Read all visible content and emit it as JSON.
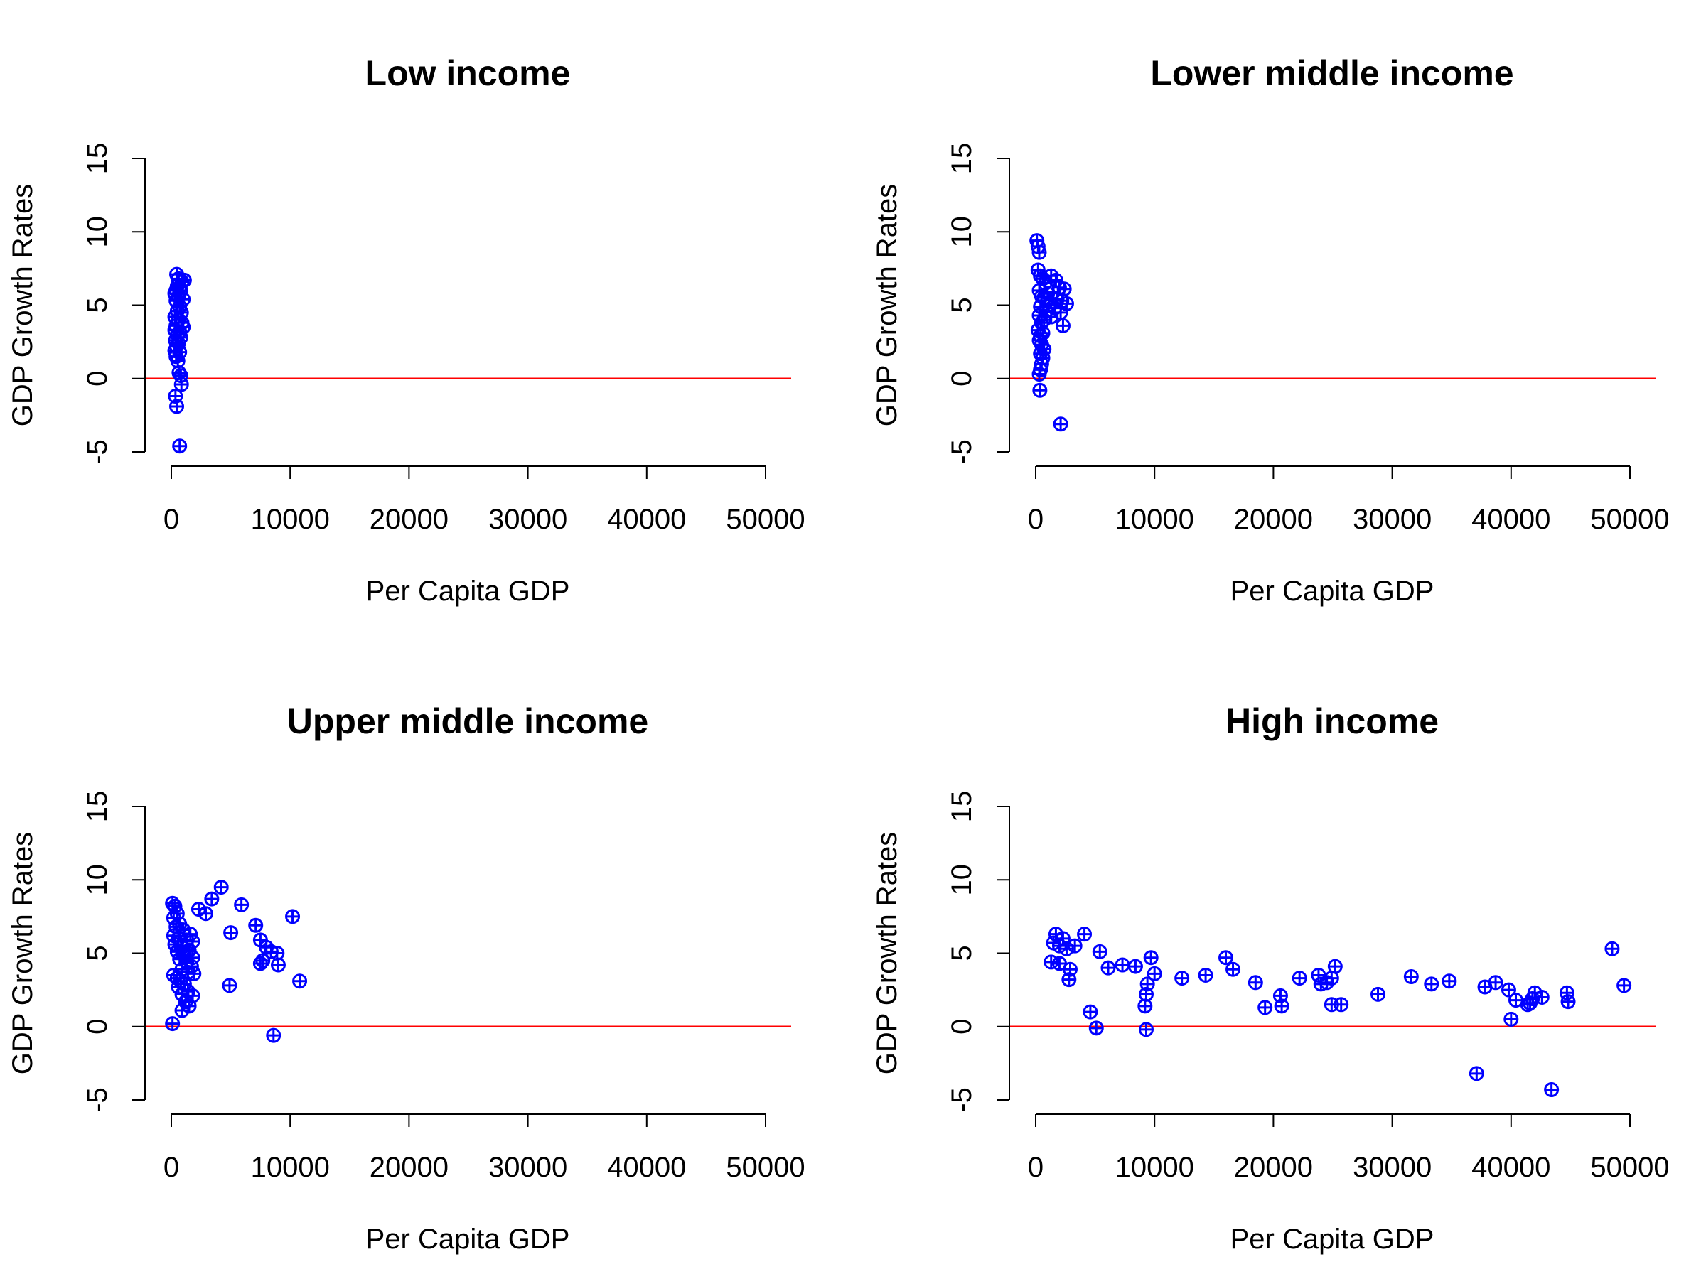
{
  "figure": {
    "colors": {
      "points": "#0000ff",
      "reference_line": "#ff0000",
      "axes": "#000000"
    },
    "marker": "circle-plus"
  },
  "chart_data": [
    {
      "type": "scatter",
      "title": "Low income",
      "xlabel": "Per Capita GDP",
      "ylabel": "GDP Growth Rates",
      "xlim": [
        0,
        50000
      ],
      "ylim": [
        -5,
        15
      ],
      "xticks": [
        0,
        10000,
        20000,
        30000,
        40000,
        50000
      ],
      "yticks": [
        -5,
        0,
        5,
        10,
        15
      ],
      "hline": 0,
      "grid": false,
      "points": [
        [
          450,
          7.1
        ],
        [
          600,
          6.8
        ],
        [
          900,
          6.6
        ],
        [
          1100,
          6.7
        ],
        [
          500,
          6.3
        ],
        [
          700,
          6.2
        ],
        [
          400,
          6.0
        ],
        [
          800,
          6.0
        ],
        [
          300,
          5.8
        ],
        [
          600,
          5.6
        ],
        [
          1000,
          5.4
        ],
        [
          400,
          5.3
        ],
        [
          700,
          4.9
        ],
        [
          500,
          4.6
        ],
        [
          850,
          4.5
        ],
        [
          300,
          4.2
        ],
        [
          600,
          4.0
        ],
        [
          900,
          3.8
        ],
        [
          400,
          3.6
        ],
        [
          1000,
          3.5
        ],
        [
          300,
          3.3
        ],
        [
          700,
          3.2
        ],
        [
          500,
          3.0
        ],
        [
          800,
          2.8
        ],
        [
          350,
          2.6
        ],
        [
          600,
          2.4
        ],
        [
          450,
          2.2
        ],
        [
          300,
          1.9
        ],
        [
          700,
          1.8
        ],
        [
          400,
          1.5
        ],
        [
          550,
          1.2
        ],
        [
          650,
          0.4
        ],
        [
          800,
          0.2
        ],
        [
          850,
          -0.4
        ],
        [
          350,
          -1.2
        ],
        [
          450,
          -1.9
        ],
        [
          700,
          -4.6
        ]
      ]
    },
    {
      "type": "scatter",
      "title": "Lower middle income",
      "xlabel": "Per Capita GDP",
      "ylabel": "GDP Growth Rates",
      "xlim": [
        0,
        50000
      ],
      "ylim": [
        -5,
        15
      ],
      "xticks": [
        0,
        10000,
        20000,
        30000,
        40000,
        50000
      ],
      "yticks": [
        -5,
        0,
        5,
        10,
        15
      ],
      "hline": 0,
      "grid": false,
      "points": [
        [
          100,
          9.4
        ],
        [
          200,
          9.0
        ],
        [
          300,
          8.6
        ],
        [
          200,
          7.4
        ],
        [
          400,
          7.0
        ],
        [
          600,
          6.8
        ],
        [
          1300,
          7.0
        ],
        [
          1700,
          6.7
        ],
        [
          800,
          6.5
        ],
        [
          2000,
          6.2
        ],
        [
          2400,
          6.1
        ],
        [
          300,
          6.0
        ],
        [
          1500,
          5.9
        ],
        [
          1000,
          5.8
        ],
        [
          500,
          5.6
        ],
        [
          700,
          5.5
        ],
        [
          1800,
          5.4
        ],
        [
          2200,
          5.3
        ],
        [
          2600,
          5.1
        ],
        [
          1100,
          5.0
        ],
        [
          400,
          4.9
        ],
        [
          1600,
          4.8
        ],
        [
          900,
          4.6
        ],
        [
          2100,
          4.5
        ],
        [
          300,
          4.3
        ],
        [
          1300,
          4.2
        ],
        [
          700,
          4.0
        ],
        [
          500,
          3.8
        ],
        [
          2300,
          3.6
        ],
        [
          200,
          3.3
        ],
        [
          600,
          3.1
        ],
        [
          400,
          2.9
        ],
        [
          300,
          2.6
        ],
        [
          500,
          2.3
        ],
        [
          700,
          2.0
        ],
        [
          400,
          1.7
        ],
        [
          600,
          1.4
        ],
        [
          500,
          1.0
        ],
        [
          400,
          0.6
        ],
        [
          300,
          0.3
        ],
        [
          350,
          -0.8
        ],
        [
          2100,
          -3.1
        ]
      ]
    },
    {
      "type": "scatter",
      "title": "Upper middle income",
      "xlabel": "Per Capita GDP",
      "ylabel": "GDP Growth Rates",
      "xlim": [
        0,
        50000
      ],
      "ylim": [
        -5,
        15
      ],
      "xticks": [
        0,
        10000,
        20000,
        30000,
        40000,
        50000
      ],
      "yticks": [
        -5,
        0,
        5,
        10,
        15
      ],
      "hline": 0,
      "grid": false,
      "points": [
        [
          100,
          8.4
        ],
        [
          300,
          8.2
        ],
        [
          500,
          7.7
        ],
        [
          200,
          7.4
        ],
        [
          700,
          7.0
        ],
        [
          400,
          6.8
        ],
        [
          1000,
          6.6
        ],
        [
          1600,
          6.3
        ],
        [
          200,
          6.2
        ],
        [
          600,
          6.0
        ],
        [
          1300,
          5.9
        ],
        [
          1800,
          5.8
        ],
        [
          300,
          5.6
        ],
        [
          900,
          5.4
        ],
        [
          1500,
          5.2
        ],
        [
          500,
          5.1
        ],
        [
          1100,
          4.9
        ],
        [
          1800,
          4.7
        ],
        [
          700,
          4.6
        ],
        [
          1300,
          4.4
        ],
        [
          1700,
          4.1
        ],
        [
          900,
          3.9
        ],
        [
          1400,
          3.7
        ],
        [
          1900,
          3.6
        ],
        [
          200,
          3.5
        ],
        [
          500,
          3.3
        ],
        [
          800,
          3.1
        ],
        [
          1100,
          2.9
        ],
        [
          600,
          2.7
        ],
        [
          1400,
          2.4
        ],
        [
          900,
          2.2
        ],
        [
          1800,
          2.1
        ],
        [
          1200,
          1.7
        ],
        [
          1500,
          1.4
        ],
        [
          900,
          1.1
        ],
        [
          100,
          0.2
        ],
        [
          2300,
          8.0
        ],
        [
          2900,
          7.7
        ],
        [
          3400,
          8.7
        ],
        [
          4200,
          9.5
        ],
        [
          5900,
          8.3
        ],
        [
          5000,
          6.4
        ],
        [
          4900,
          2.8
        ],
        [
          7100,
          6.9
        ],
        [
          7500,
          5.9
        ],
        [
          8000,
          5.4
        ],
        [
          8400,
          5.1
        ],
        [
          8900,
          5.0
        ],
        [
          7500,
          4.3
        ],
        [
          7700,
          4.5
        ],
        [
          9000,
          4.2
        ],
        [
          10200,
          7.5
        ],
        [
          10800,
          3.1
        ],
        [
          8600,
          -0.6
        ]
      ]
    },
    {
      "type": "scatter",
      "title": "High income",
      "xlabel": "Per Capita GDP",
      "ylabel": "GDP Growth Rates",
      "xlim": [
        0,
        50000
      ],
      "ylim": [
        -5,
        15
      ],
      "xticks": [
        0,
        10000,
        20000,
        30000,
        40000,
        50000
      ],
      "yticks": [
        -5,
        0,
        5,
        10,
        15
      ],
      "hline": 0,
      "grid": false,
      "points": [
        [
          1700,
          6.3
        ],
        [
          2300,
          6.0
        ],
        [
          1500,
          5.7
        ],
        [
          2000,
          5.5
        ],
        [
          2600,
          5.3
        ],
        [
          1300,
          4.4
        ],
        [
          2000,
          4.3
        ],
        [
          2900,
          3.9
        ],
        [
          2800,
          3.2
        ],
        [
          3300,
          5.5
        ],
        [
          4100,
          6.3
        ],
        [
          5400,
          5.1
        ],
        [
          6100,
          4.0
        ],
        [
          7300,
          4.2
        ],
        [
          8400,
          4.1
        ],
        [
          4600,
          1.0
        ],
        [
          5100,
          -0.1
        ],
        [
          9700,
          4.7
        ],
        [
          10000,
          3.6
        ],
        [
          9400,
          2.9
        ],
        [
          9300,
          2.2
        ],
        [
          9200,
          1.4
        ],
        [
          9300,
          -0.2
        ],
        [
          12300,
          3.3
        ],
        [
          14300,
          3.5
        ],
        [
          16000,
          4.7
        ],
        [
          16600,
          3.9
        ],
        [
          18500,
          3.0
        ],
        [
          19300,
          1.3
        ],
        [
          20600,
          2.1
        ],
        [
          20700,
          1.4
        ],
        [
          22200,
          3.3
        ],
        [
          23800,
          3.5
        ],
        [
          24000,
          2.9
        ],
        [
          24500,
          3.0
        ],
        [
          24900,
          3.3
        ],
        [
          25200,
          4.1
        ],
        [
          24900,
          1.5
        ],
        [
          25700,
          1.5
        ],
        [
          28800,
          2.2
        ],
        [
          31600,
          3.4
        ],
        [
          33300,
          2.9
        ],
        [
          34800,
          3.1
        ],
        [
          37800,
          2.7
        ],
        [
          38700,
          3.0
        ],
        [
          39800,
          2.5
        ],
        [
          40400,
          1.8
        ],
        [
          41400,
          1.5
        ],
        [
          41800,
          1.9
        ],
        [
          42000,
          2.3
        ],
        [
          42600,
          2.0
        ],
        [
          41600,
          1.6
        ],
        [
          40000,
          0.5
        ],
        [
          44700,
          2.3
        ],
        [
          44800,
          1.7
        ],
        [
          48500,
          5.3
        ],
        [
          49500,
          2.8
        ],
        [
          37100,
          -3.2
        ],
        [
          43400,
          -4.3
        ]
      ]
    }
  ]
}
